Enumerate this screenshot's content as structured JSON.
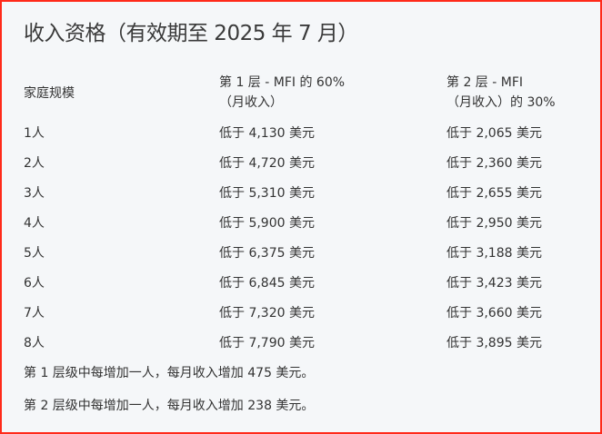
{
  "title": "收入资格（有效期至 2025 年 7 月）",
  "table": {
    "headers": [
      "家庭规模",
      "第 1 层 - MFI 的 60%（月收入）",
      "第 2 层 - MFI（月收入）的 30%"
    ],
    "header_lines": {
      "col2": [
        "第 1 层 - MFI 的 60%",
        "（月收入）"
      ],
      "col3": [
        "第 2 层 - MFI",
        "（月收入）的 30%"
      ]
    },
    "rows": [
      [
        "1人",
        "低于 4,130 美元",
        "低于 2,065 美元"
      ],
      [
        "2人",
        "低于 4,720 美元",
        "低于 2,360 美元"
      ],
      [
        "3人",
        "低于 5,310 美元",
        "低于 2,655 美元"
      ],
      [
        "4人",
        "低于 5,900 美元",
        "低于 2,950 美元"
      ],
      [
        "5人",
        "低于 6,375 美元",
        "低于 3,188 美元"
      ],
      [
        "6人",
        "低于 6,845 美元",
        "低于 3,423 美元"
      ],
      [
        "7人",
        "低于 7,320 美元",
        "低于 3,660 美元"
      ],
      [
        "8人",
        "低于 7,790 美元",
        "低于 3,895 美元"
      ]
    ]
  },
  "notes": [
    "第 1 层级中每增加一人，每月收入增加 475 美元。",
    "第 2 层级中每增加一人，每月收入增加 238 美元。"
  ]
}
